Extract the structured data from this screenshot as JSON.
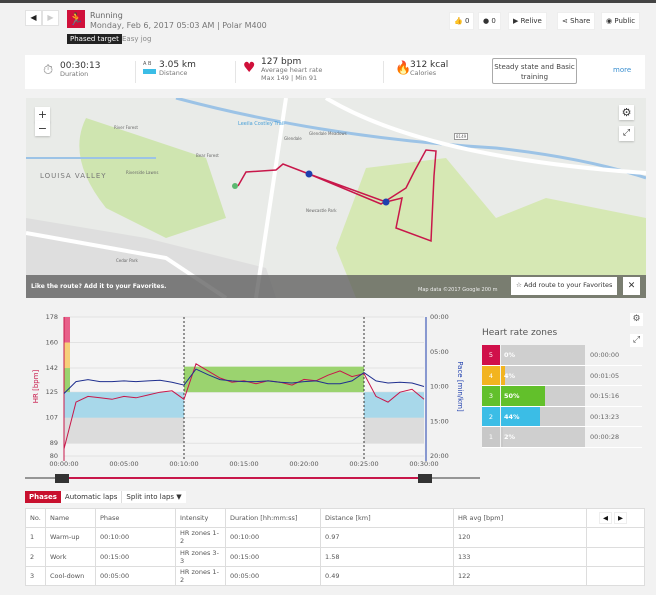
{
  "header": {
    "sport": "Running",
    "datetime": "Monday, Feb 6, 2017 05:03 AM | Polar M400",
    "badge": "Phased target",
    "target_name": "Easy jog",
    "likes": "0",
    "comments": "0",
    "relive": "Relive",
    "share": "Share",
    "visibility": "Public",
    "accent": "#d0103a"
  },
  "summary": {
    "duration": "00:30:13",
    "duration_label": "Duration",
    "distance": "3.05 km",
    "distance_label": "Distance",
    "distance_icon_text": "A  B",
    "hr": "127 bpm",
    "hr_label": "Average heart rate",
    "hr_maxmin": "Max 149  |  Min 91",
    "calories": "312 kcal",
    "calories_label": "Calories",
    "benefit": "Steady state and Basic training",
    "more": "more"
  },
  "map": {
    "labels": [
      "LOUISA VALLEY",
      "River Forest",
      "Bear Forest",
      "Glendale",
      "Glendale Meadows",
      "Leeila Costley Trail",
      "Riverside Lawns",
      "Newcastle Park",
      "Cedar Park",
      "8149"
    ],
    "like_text": "Like the route?  Add it to your Favorites.",
    "add_button": "Add route to your Favorites",
    "attribution": "Map data ©2017 Google   200 m",
    "zoom_in": "+",
    "zoom_out": "−"
  },
  "chart_data": {
    "type": "line",
    "ylabel": "HR [bpm]",
    "y2label": "Pace [min/km]",
    "yticks": [
      178,
      160,
      142,
      125,
      107,
      89,
      80
    ],
    "y2ticks": [
      "00:00",
      "05:00",
      "10:00",
      "15:00",
      "20:00"
    ],
    "xticks": [
      "00:00:00",
      "00:05:00",
      "00:10:00",
      "00:15:00",
      "00:20:00",
      "00:25:00",
      "00:30:00"
    ],
    "ylim": [
      80,
      178
    ],
    "y2lim": [
      0,
      20
    ],
    "xlim": [
      0,
      30
    ],
    "phase_boundaries": [
      10,
      25
    ],
    "target_bands": [
      {
        "from": 0,
        "to": 10,
        "zones": [
          [
            89,
            107,
            "#dcdcdc"
          ],
          [
            107,
            125,
            "#a8d8ea"
          ]
        ]
      },
      {
        "from": 10,
        "to": 25,
        "zones": [
          [
            125,
            143,
            "#9bd36f"
          ]
        ]
      },
      {
        "from": 25,
        "to": 30,
        "zones": [
          [
            89,
            107,
            "#dcdcdc"
          ],
          [
            107,
            125,
            "#a8d8ea"
          ]
        ]
      }
    ],
    "series": [
      {
        "name": "HR",
        "color": "#c8174a",
        "x": [
          0,
          1,
          2,
          3,
          4,
          5,
          6,
          7,
          8,
          9,
          10,
          11,
          12,
          13,
          14,
          15,
          16,
          17,
          18,
          19,
          20,
          21,
          22,
          23,
          24,
          25,
          26,
          27,
          28,
          29,
          30
        ],
        "values": [
          85,
          118,
          122,
          121,
          120,
          122,
          121,
          123,
          125,
          126,
          120,
          145,
          140,
          135,
          132,
          133,
          131,
          133,
          132,
          130,
          134,
          133,
          137,
          140,
          136,
          138,
          122,
          118,
          125,
          127,
          120
        ]
      },
      {
        "name": "Pace",
        "color": "#1f2f8f",
        "x": [
          0,
          1,
          2,
          3,
          4,
          5,
          6,
          7,
          8,
          9,
          10,
          11,
          12,
          13,
          14,
          15,
          16,
          17,
          18,
          19,
          20,
          21,
          22,
          23,
          24,
          25,
          26,
          27,
          28,
          29,
          30
        ],
        "values": [
          11,
          9.3,
          9.0,
          9.3,
          9.3,
          9.2,
          9.3,
          9.2,
          9.1,
          9.4,
          9.8,
          7.5,
          8.3,
          9.0,
          9.2,
          9.3,
          9.3,
          9.2,
          9.4,
          9.5,
          9.3,
          9.2,
          9.6,
          9.6,
          9.2,
          8.0,
          9.2,
          9.5,
          9.4,
          9.5,
          10.0
        ]
      }
    ]
  },
  "zones": {
    "title": "Heart rate zones",
    "items": [
      {
        "zone": "5",
        "pct": "0%",
        "value": 0,
        "time": "00:00:00",
        "color": "#d0104a"
      },
      {
        "zone": "4",
        "pct": "4%",
        "value": 4,
        "time": "00:01:05",
        "color": "#f2b420"
      },
      {
        "zone": "3",
        "pct": "50%",
        "value": 50,
        "time": "00:15:16",
        "color": "#62c02b"
      },
      {
        "zone": "2",
        "pct": "44%",
        "value": 44,
        "time": "00:13:23",
        "color": "#3bbde6"
      },
      {
        "zone": "1",
        "pct": "2%",
        "value": 2,
        "time": "00:00:28",
        "color": "#c8c8c8"
      }
    ]
  },
  "tabs": {
    "phases": "Phases",
    "auto_laps": "Automatic laps",
    "split": "Split into laps ▼"
  },
  "table": {
    "headers": [
      "No.",
      "Name",
      "Phase",
      "Intensity",
      "Duration [hh:mm:ss]",
      "Distance [km]",
      "HR avg [bpm]"
    ],
    "rows": [
      [
        "1",
        "Warm-up",
        "00:10:00",
        "HR zones 1-2",
        "00:10:00",
        "0.97",
        "120"
      ],
      [
        "2",
        "Work",
        "00:15:00",
        "HR zones 3-3",
        "00:15:00",
        "1.58",
        "133"
      ],
      [
        "3",
        "Cool-down",
        "00:05:00",
        "HR zones 1-2",
        "00:05:00",
        "0.49",
        "122"
      ]
    ]
  }
}
